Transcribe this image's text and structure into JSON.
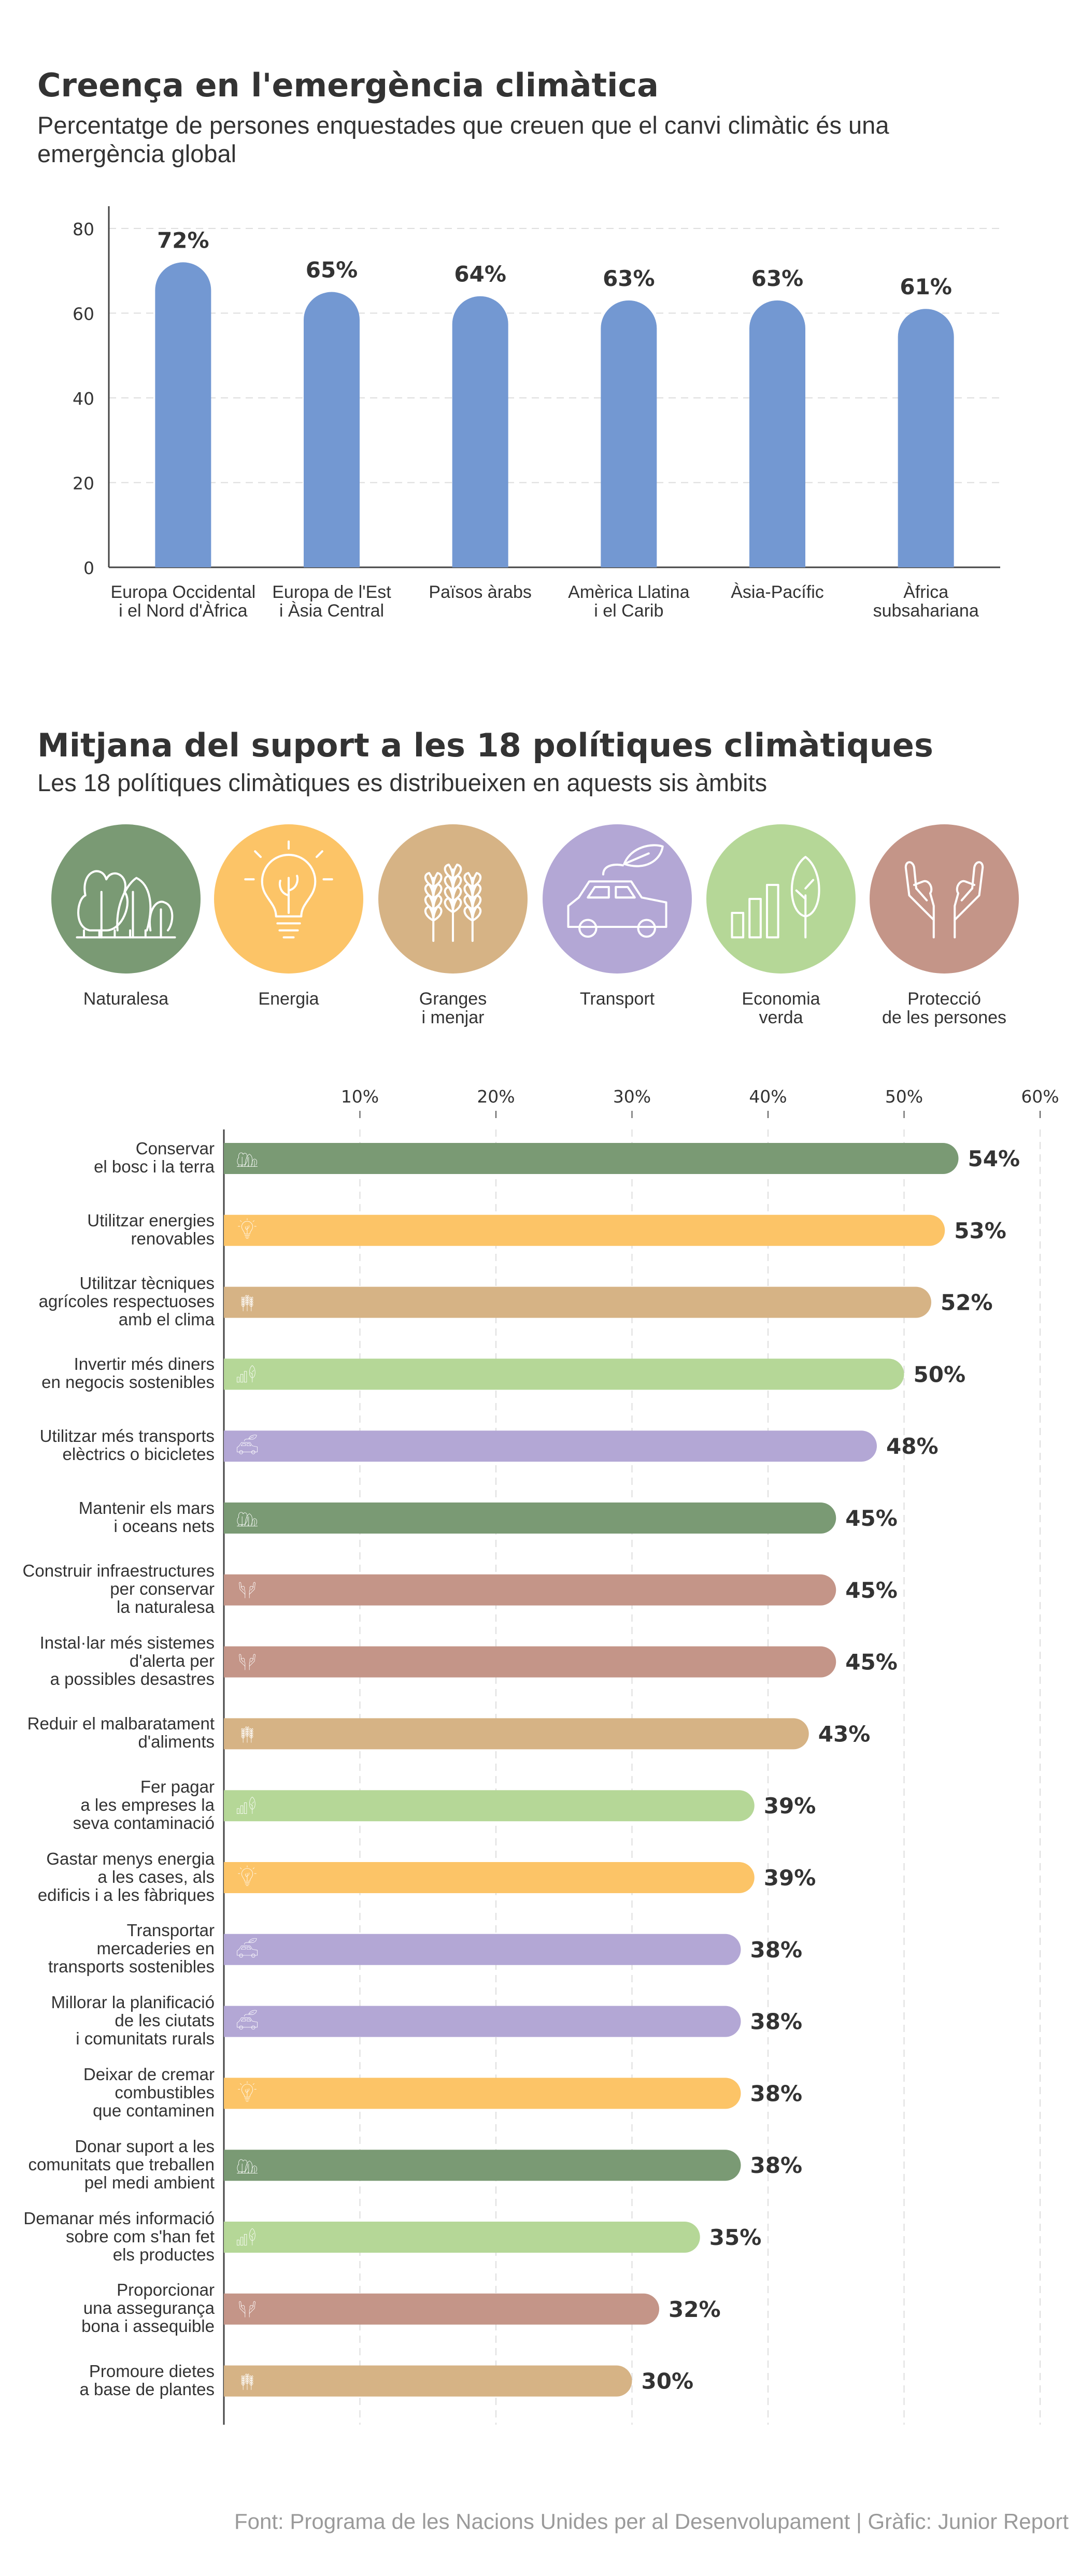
{
  "chart_data": [
    {
      "type": "bar",
      "title": "Creença en l'emergència climàtica",
      "subtitle": "Percentatge de persones enquestades que creuen que el canvi climàtic és una emergència global",
      "categories": [
        "Europa Occidental\ni el Nord d'Àfrica",
        "Europa de l'Est\ni Àsia Central",
        "Països àrabs",
        "Amèrica Llatina\ni el Carib",
        "Àsia-Pacífic",
        "Àfrica\nsubsahariana"
      ],
      "values": [
        72,
        65,
        64,
        63,
        63,
        61
      ],
      "value_labels": [
        "72%",
        "65%",
        "64%",
        "63%",
        "63%",
        "61%"
      ],
      "yticks": [
        "0",
        "20",
        "40",
        "60",
        "80"
      ],
      "ylim": [
        0,
        85
      ],
      "grid": true,
      "bar_color": "#7398D2"
    },
    {
      "type": "bar",
      "orientation": "horizontal",
      "title": "Mitjana del suport a les 18 polítiques climàtiques",
      "subtitle": "Les 18 polítiques climàtiques es distribueixen en aquests sis àmbits",
      "domains": [
        {
          "key": "naturalesa",
          "label": "Naturalesa",
          "color": "#7A9A74",
          "icon": "forest-icon"
        },
        {
          "key": "energia",
          "label": "Energia",
          "color": "#FCC467",
          "icon": "lightbulb-icon"
        },
        {
          "key": "granges",
          "label": "Granges\ni menjar",
          "color": "#D6B385",
          "icon": "wheat-icon"
        },
        {
          "key": "transport",
          "label": "Transport",
          "color": "#B3A7D5",
          "icon": "car-icon"
        },
        {
          "key": "economia",
          "label": "Economia\nverda",
          "color": "#B5D797",
          "icon": "growth-chart-icon"
        },
        {
          "key": "proteccio",
          "label": "Protecció\nde les persones",
          "color": "#C49588",
          "icon": "hands-icon"
        }
      ],
      "xticks": [
        "10%",
        "20%",
        "30%",
        "40%",
        "50%",
        "60%"
      ],
      "xlim": [
        0,
        60
      ],
      "grid": true,
      "bars": [
        {
          "label": "Conservar\nel bosc i la terra",
          "value": 54,
          "value_label": "54%",
          "domain": "naturalesa"
        },
        {
          "label": "Utilitzar energies\nrenovables",
          "value": 53,
          "value_label": "53%",
          "domain": "energia"
        },
        {
          "label": "Utilitzar tècniques\nagrícoles respectuoses\namb el clima",
          "value": 52,
          "value_label": "52%",
          "domain": "granges"
        },
        {
          "label": "Invertir més diners\nen negocis sostenibles",
          "value": 50,
          "value_label": "50%",
          "domain": "economia"
        },
        {
          "label": "Utilitzar més transports\nelèctrics o bicicletes",
          "value": 48,
          "value_label": "48%",
          "domain": "transport"
        },
        {
          "label": "Mantenir els mars\ni oceans nets",
          "value": 45,
          "value_label": "45%",
          "domain": "naturalesa"
        },
        {
          "label": "Construir infraestructures\nper conservar\nla naturalesa",
          "value": 45,
          "value_label": "45%",
          "domain": "proteccio"
        },
        {
          "label": "Instal·lar més sistemes\nd'alerta per\na possibles desastres",
          "value": 45,
          "value_label": "45%",
          "domain": "proteccio"
        },
        {
          "label": "Reduir el malbaratament\nd'aliments",
          "value": 43,
          "value_label": "43%",
          "domain": "granges"
        },
        {
          "label": "Fer pagar\na les empreses la\nseva contaminació",
          "value": 39,
          "value_label": "39%",
          "domain": "economia"
        },
        {
          "label": "Gastar menys energia\na les cases, als\nedificis i a les fàbriques",
          "value": 39,
          "value_label": "39%",
          "domain": "energia"
        },
        {
          "label": "Transportar\nmercaderies en\ntransports sostenibles",
          "value": 38,
          "value_label": "38%",
          "domain": "transport"
        },
        {
          "label": "Millorar la planificació\nde les ciutats\ni comunitats rurals",
          "value": 38,
          "value_label": "38%",
          "domain": "transport"
        },
        {
          "label": "Deixar de cremar\ncombustibles\nque contaminen",
          "value": 38,
          "value_label": "38%",
          "domain": "energia"
        },
        {
          "label": "Donar suport a les\ncomunitats que treballen\npel medi ambient",
          "value": 38,
          "value_label": "38%",
          "domain": "naturalesa"
        },
        {
          "label": "Demanar més informació\nsobre com s'han fet\nels productes",
          "value": 35,
          "value_label": "35%",
          "domain": "economia"
        },
        {
          "label": "Proporcionar\nuna assegurança\nbona i assequible",
          "value": 32,
          "value_label": "32%",
          "domain": "proteccio"
        },
        {
          "label": "Promoure dietes\na base de plantes",
          "value": 30,
          "value_label": "30%",
          "domain": "granges"
        }
      ]
    }
  ],
  "footer": "Font: Programa de les Nacions Unides per al Desenvolupament | Gràfic: Junior Report"
}
